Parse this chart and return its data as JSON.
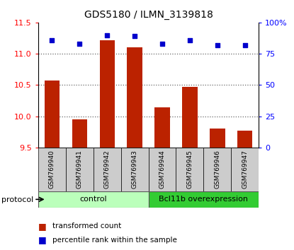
{
  "title": "GDS5180 / ILMN_3139818",
  "samples": [
    "GSM769940",
    "GSM769941",
    "GSM769942",
    "GSM769943",
    "GSM769944",
    "GSM769945",
    "GSM769946",
    "GSM769947"
  ],
  "bar_values": [
    10.57,
    9.95,
    11.22,
    11.1,
    10.14,
    10.47,
    9.8,
    9.77
  ],
  "scatter_values": [
    86,
    83,
    90,
    89,
    83,
    86,
    82,
    82
  ],
  "ylim_left": [
    9.5,
    11.5
  ],
  "ylim_right": [
    0,
    100
  ],
  "yticks_left": [
    9.5,
    10.0,
    10.5,
    11.0,
    11.5
  ],
  "yticks_right": [
    0,
    25,
    50,
    75,
    100
  ],
  "yticklabels_right": [
    "0",
    "25",
    "50",
    "75",
    "100%"
  ],
  "bar_color": "#bb2200",
  "scatter_color": "#0000cc",
  "bar_bottom": 9.5,
  "groups": [
    {
      "label": "control",
      "start": 0,
      "end": 4,
      "color": "#bbffbb"
    },
    {
      "label": "Bcl11b overexpression",
      "start": 4,
      "end": 8,
      "color": "#33cc33"
    }
  ],
  "protocol_label": "protocol",
  "legend_bar_label": "transformed count",
  "legend_scatter_label": "percentile rank within the sample",
  "sample_bg_color": "#cccccc",
  "grid_yticks": [
    10.0,
    10.5,
    11.0
  ]
}
